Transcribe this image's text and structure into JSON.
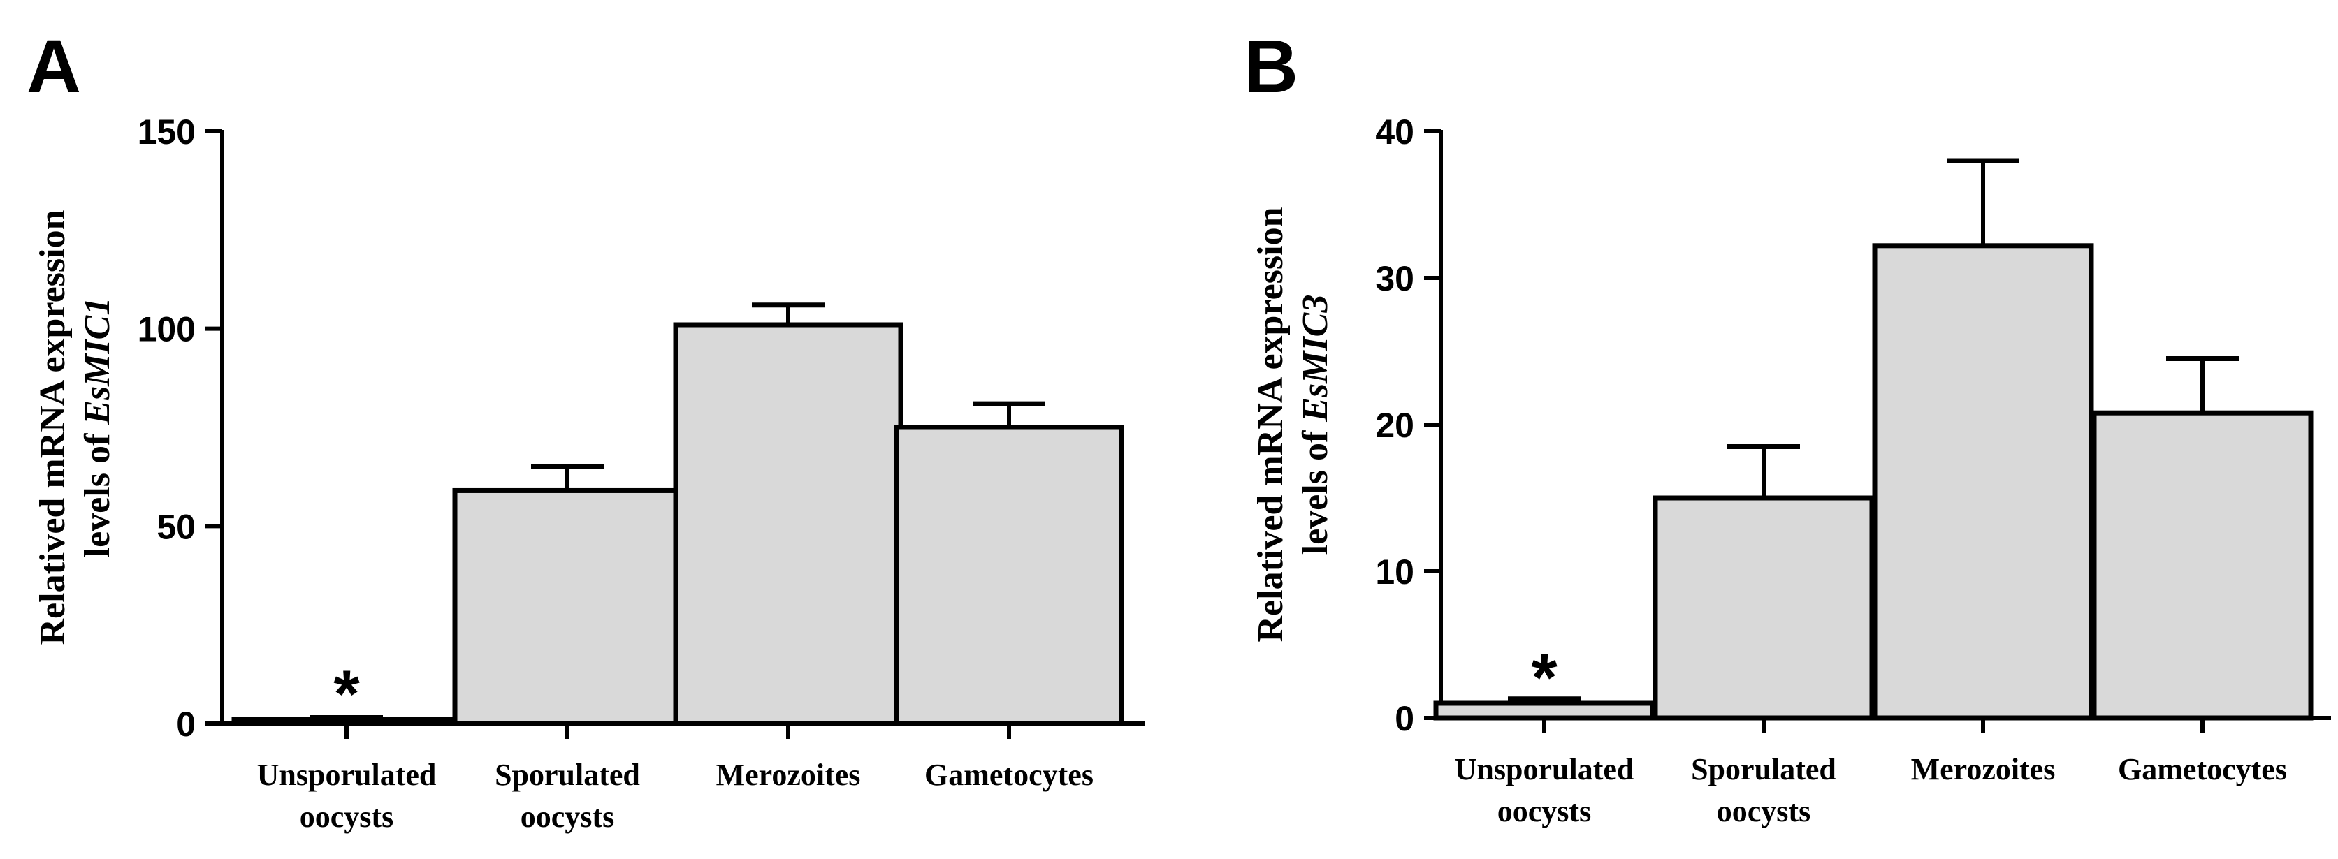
{
  "chart_data": [
    {
      "panel": "A",
      "type": "bar",
      "categories": [
        [
          "Unsporulated",
          "oocysts"
        ],
        [
          "Sporulated",
          "oocysts"
        ],
        [
          "Merozoites"
        ],
        [
          "Gametocytes"
        ]
      ],
      "values": [
        1,
        59,
        101,
        75
      ],
      "errors": [
        0.5,
        6,
        5,
        6
      ],
      "ylabel_line1": "Relatived mRNA expression",
      "ylabel_line2_prefix": "levels of ",
      "ylabel_gene": "EsMIC1",
      "ylim": [
        0,
        150
      ],
      "yticks": [
        0,
        50,
        100,
        150
      ],
      "annotation": "*",
      "annotation_category_index": 0,
      "bar_color": "#d9d9d9"
    },
    {
      "panel": "B",
      "type": "bar",
      "categories": [
        [
          "Unsporulated",
          "oocysts"
        ],
        [
          "Sporulated",
          "oocysts"
        ],
        [
          "Merozoites"
        ],
        [
          "Gametocytes"
        ]
      ],
      "values": [
        1,
        15,
        32.2,
        20.8
      ],
      "errors": [
        0.3,
        3.5,
        5.8,
        3.7
      ],
      "ylabel_line1": "Relatived mRNA expression",
      "ylabel_line2_prefix": "levels of ",
      "ylabel_gene": "EsMIC3",
      "ylim": [
        0,
        40
      ],
      "yticks": [
        0,
        10,
        20,
        30,
        40
      ],
      "annotation": "*",
      "annotation_category_index": 0,
      "bar_color": "#d9d9d9"
    }
  ]
}
